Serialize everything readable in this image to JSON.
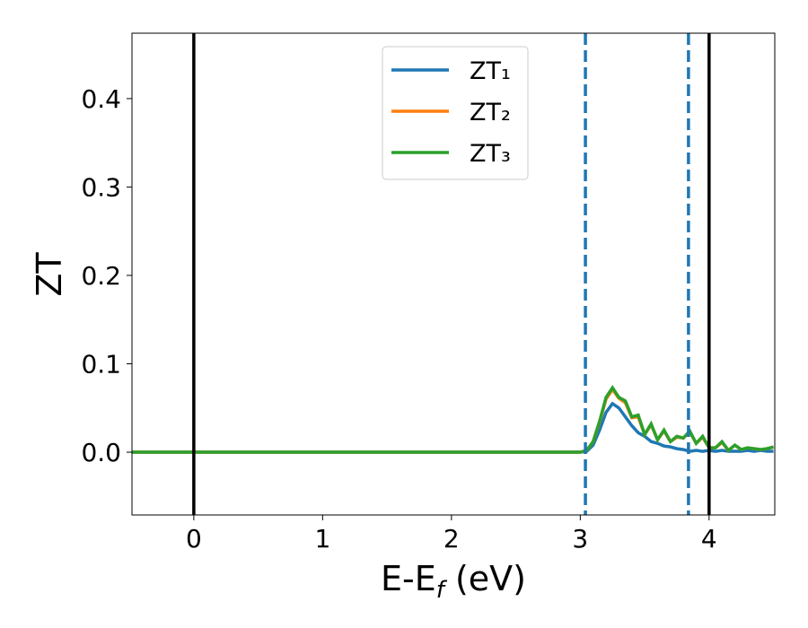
{
  "chart_data": {
    "type": "line",
    "xlabel": [
      "E-E",
      "f",
      " (eV)"
    ],
    "ylabel": "ZT",
    "x": [
      -0.48,
      3.0,
      3.05,
      3.1,
      3.15,
      3.2,
      3.25,
      3.3,
      3.35,
      3.4,
      3.45,
      3.5,
      3.55,
      3.6,
      3.65,
      3.7,
      3.75,
      3.8,
      3.85,
      3.9,
      3.95,
      4.0,
      4.05,
      4.1,
      4.15,
      4.2,
      4.25,
      4.3,
      4.35,
      4.4,
      4.45,
      4.5
    ],
    "series": [
      {
        "name": "ZT₁",
        "color": "#1f77b4",
        "values": [
          0,
          0,
          0.001,
          0.008,
          0.025,
          0.045,
          0.055,
          0.05,
          0.04,
          0.03,
          0.022,
          0.018,
          0.012,
          0.01,
          0.007,
          0.006,
          0.004,
          0.003,
          0.001,
          0.002,
          0.001,
          0.002,
          0.001,
          0.002,
          0.001,
          0.001,
          0.001,
          0.002,
          0.001,
          0.002,
          0.001,
          0.001
        ]
      },
      {
        "name": "ZT₂",
        "color": "#ff7f0e",
        "values": [
          0,
          0,
          0.002,
          0.012,
          0.034,
          0.06,
          0.071,
          0.061,
          0.056,
          0.039,
          0.04,
          0.02,
          0.031,
          0.014,
          0.024,
          0.012,
          0.017,
          0.016,
          0.023,
          0.01,
          0.017,
          0.005,
          0.005,
          0.011,
          0.002,
          0.008,
          0.003,
          0.005,
          0.004,
          0.003,
          0.004,
          0.006
        ]
      },
      {
        "name": "ZT₃",
        "color": "#2ca02c",
        "values": [
          0,
          0,
          0.002,
          0.012,
          0.035,
          0.062,
          0.073,
          0.062,
          0.058,
          0.04,
          0.042,
          0.02,
          0.032,
          0.014,
          0.025,
          0.012,
          0.018,
          0.016,
          0.024,
          0.01,
          0.018,
          0.005,
          0.005,
          0.012,
          0.002,
          0.008,
          0.003,
          0.005,
          0.004,
          0.003,
          0.004,
          0.006
        ]
      }
    ],
    "vlines": [
      {
        "x": 0,
        "color": "#000000",
        "dashed": false
      },
      {
        "x": 4.0,
        "color": "#000000",
        "dashed": false
      },
      {
        "x": 3.04,
        "color": "#1f77b4",
        "dashed": true
      },
      {
        "x": 3.84,
        "color": "#1f77b4",
        "dashed": true
      }
    ],
    "xlim": [
      -0.48,
      4.51
    ],
    "ylim": [
      -0.071,
      0.474
    ],
    "xticks": [
      0,
      1,
      2,
      3,
      4
    ],
    "yticks": [
      {
        "value": 0,
        "label": "0.0"
      },
      0.1,
      0.2,
      0.3,
      0.4
    ],
    "legend": "upper center",
    "grid": false
  }
}
